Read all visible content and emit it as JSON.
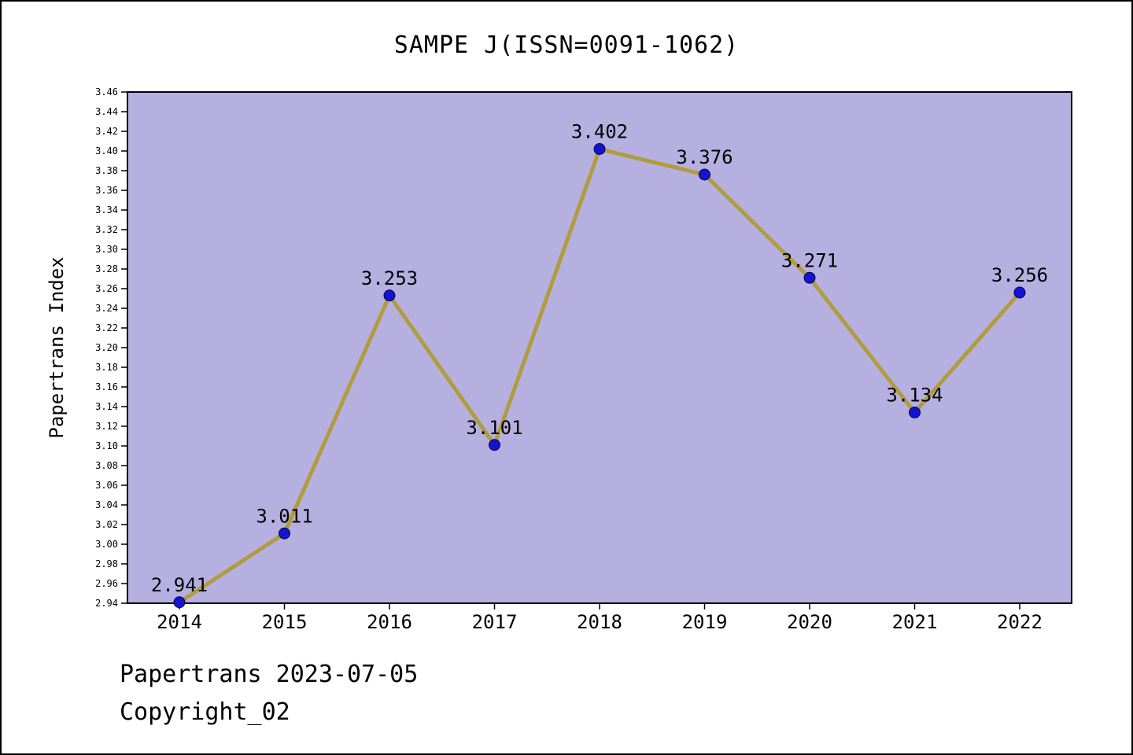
{
  "page": {
    "title": "SAMPE J(ISSN=0091-1062)",
    "footer_line1": "Papertrans 2023-07-05",
    "footer_line2": "Copyright_02"
  },
  "chart_data": {
    "type": "line",
    "title": "SAMPE J(ISSN=0091-1062)",
    "xlabel": "",
    "ylabel": "Papertrans Index",
    "categories": [
      "2014",
      "2015",
      "2016",
      "2017",
      "2018",
      "2019",
      "2020",
      "2021",
      "2022"
    ],
    "values": [
      2.941,
      3.011,
      3.253,
      3.101,
      3.402,
      3.376,
      3.271,
      3.134,
      3.256
    ],
    "ylim": [
      2.94,
      3.46
    ],
    "ytick_step": 0.02,
    "grid": false,
    "legend": null,
    "colors": {
      "plot_background": "#b6b0e0",
      "line": "#b09c3e",
      "point": "#1414cc",
      "axis": "#000000"
    }
  }
}
